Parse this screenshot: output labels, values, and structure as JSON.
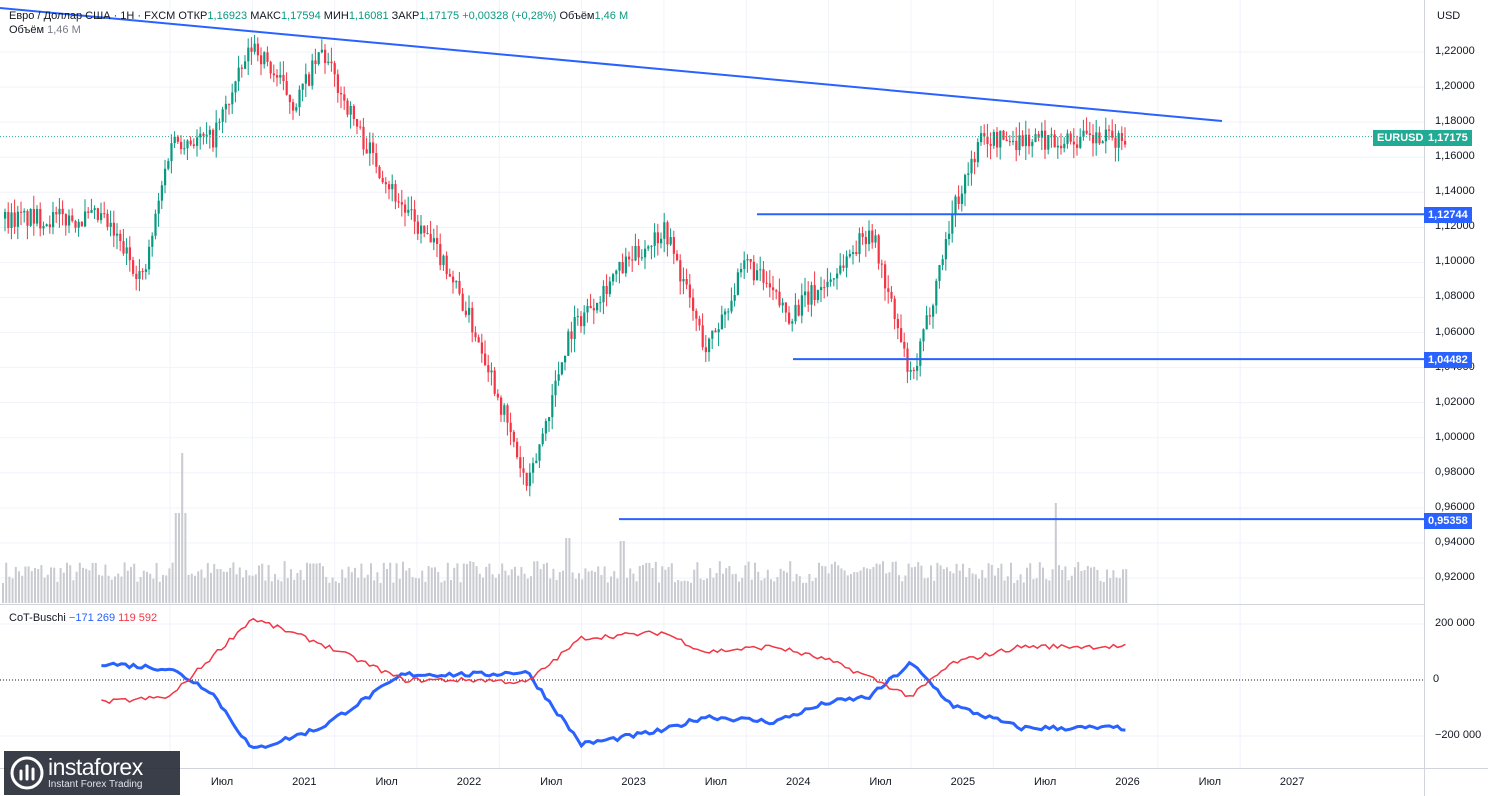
{
  "legend": {
    "symbol": "Евро / Доллар США · 1Н · FXCM",
    "open_label": "ОТКР",
    "open_value": "1,16923",
    "high_label": "МАКС",
    "high_value": "1,17594",
    "low_label": "МИН",
    "low_value": "1,16081",
    "close_label": "ЗАКР",
    "close_value": "1,17175",
    "change": "+0,00328 (+0,28%)",
    "volume_label": "Объём",
    "volume_value": "1,46 M"
  },
  "volume_legend": {
    "label": "Объём",
    "value": "1,46 M"
  },
  "cot_legend": {
    "label": "CoT-Buschi",
    "value_blue": "−171 269",
    "value_red": "119 592"
  },
  "price_scale": {
    "currency": "USD",
    "ticks": [
      "1,22000",
      "1,20000",
      "1,18000",
      "1,16000",
      "1,14000",
      "1,12000",
      "1,10000",
      "1,08000",
      "1,06000",
      "1,04000",
      "1,02000",
      "1,00000",
      "0,98000",
      "0,96000",
      "0,94000",
      "0,92000"
    ]
  },
  "cot_scale": {
    "ticks": [
      "200 000",
      "0",
      "−200 000"
    ]
  },
  "badges": {
    "instrument": "EURUSD",
    "current_price": "1,17175",
    "level_1": "1,12744",
    "level_2": "1,04482",
    "level_3": "0,95358"
  },
  "time_scale": {
    "labels": [
      "Июл",
      "2021",
      "Июл",
      "2022",
      "Июл",
      "2023",
      "Июл",
      "2024",
      "Июл",
      "2025",
      "Июл",
      "2026",
      "Июл",
      "2027"
    ]
  },
  "logo": {
    "title": "instaforex",
    "subtitle": "Instant Forex Trading"
  },
  "colors": {
    "up": "#089981",
    "down": "#f23645",
    "trend_line": "#2962ff",
    "cot_blue": "#2962ff",
    "cot_red": "#f23645",
    "current_price_badge": "#22ab94",
    "level_badge": "#2962ff"
  },
  "chart_data": {
    "type": "line",
    "title": "Евро / Доллар США · 1Н · FXCM",
    "series": [
      {
        "name": "EURUSD",
        "x": [
          "2020-02",
          "2020-05",
          "2020-07",
          "2020-10",
          "2021-01",
          "2021-04",
          "2021-06",
          "2021-09",
          "2021-12",
          "2022-03",
          "2022-06",
          "2022-09",
          "2022-12",
          "2023-03",
          "2023-07",
          "2023-10",
          "2024-01",
          "2024-04",
          "2024-07",
          "2024-10",
          "2025-01",
          "2025-04",
          "2025-06",
          "2025-09"
        ],
        "values": [
          1.125,
          1.09,
          1.17,
          1.17,
          1.225,
          1.19,
          1.22,
          1.17,
          1.13,
          1.1,
          1.045,
          0.97,
          1.06,
          1.09,
          1.12,
          1.05,
          1.1,
          1.07,
          1.09,
          1.12,
          1.03,
          1.13,
          1.17,
          1.17
        ]
      },
      {
        "name": "CoT-Buschi",
        "x": [
          "2020-02",
          "2020-07",
          "2020-10",
          "2021-01",
          "2021-06",
          "2021-12",
          "2022-06",
          "2022-09",
          "2023-01",
          "2023-07",
          "2023-10",
          "2024-03",
          "2024-07",
          "2024-10",
          "2025-01",
          "2025-04",
          "2025-09"
        ],
        "values": [
          60000,
          40000,
          -40000,
          -250000,
          -170000,
          20000,
          20000,
          30000,
          -230000,
          -180000,
          -130000,
          -150000,
          -80000,
          -60000,
          60000,
          -90000,
          -171269
        ]
      },
      {
        "name": "CoT-Buschi",
        "x": [
          "2020-02",
          "2020-07",
          "2020-10",
          "2021-01",
          "2021-06",
          "2021-12",
          "2022-06",
          "2022-09",
          "2023-01",
          "2023-07",
          "2023-10",
          "2024-03",
          "2024-07",
          "2024-10",
          "2025-01",
          "2025-04",
          "2025-09"
        ],
        "values": [
          -80000,
          -60000,
          80000,
          220000,
          130000,
          0,
          0,
          -10000,
          150000,
          170000,
          100000,
          120000,
          70000,
          10000,
          -60000,
          60000,
          119592
        ]
      }
    ],
    "levels": [
      1.12744,
      1.04482,
      0.95358
    ],
    "current_price": 1.17175,
    "ylim": [
      0.9,
      1.235
    ]
  }
}
